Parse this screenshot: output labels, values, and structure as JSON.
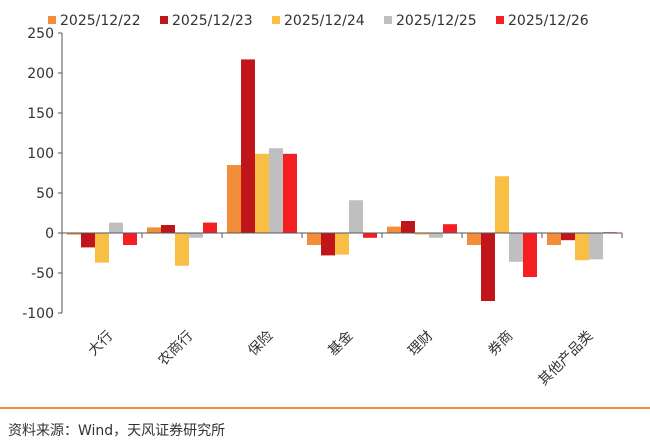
{
  "chart_data": {
    "type": "bar",
    "categories": [
      "大行",
      "农商行",
      "保险",
      "基金",
      "理财",
      "券商",
      "其他产品类"
    ],
    "series": [
      {
        "name": "2025/12/22",
        "color": "#f28e3a",
        "values": [
          -2,
          7,
          85,
          -15,
          8,
          -15,
          -15
        ]
      },
      {
        "name": "2025/12/23",
        "color": "#c0161b",
        "values": [
          -18,
          10,
          217,
          -28,
          15,
          -85,
          -9
        ]
      },
      {
        "name": "2025/12/24",
        "color": "#f9bf45",
        "values": [
          -37,
          -41,
          99,
          -27,
          -2,
          71,
          -34
        ]
      },
      {
        "name": "2025/12/25",
        "color": "#bfbfbf",
        "values": [
          13,
          -6,
          106,
          41,
          -6,
          -36,
          -33
        ]
      },
      {
        "name": "2025/12/26",
        "color": "#f41f22",
        "values": [
          -15,
          13,
          99,
          -6,
          11,
          -55,
          1
        ]
      }
    ],
    "ylim": [
      -100,
      250
    ],
    "yticks": [
      -100,
      -50,
      0,
      50,
      100,
      150,
      200,
      250
    ],
    "grid": false,
    "legend": "top"
  },
  "source": "资料来源：Wind，天风证券研究所"
}
